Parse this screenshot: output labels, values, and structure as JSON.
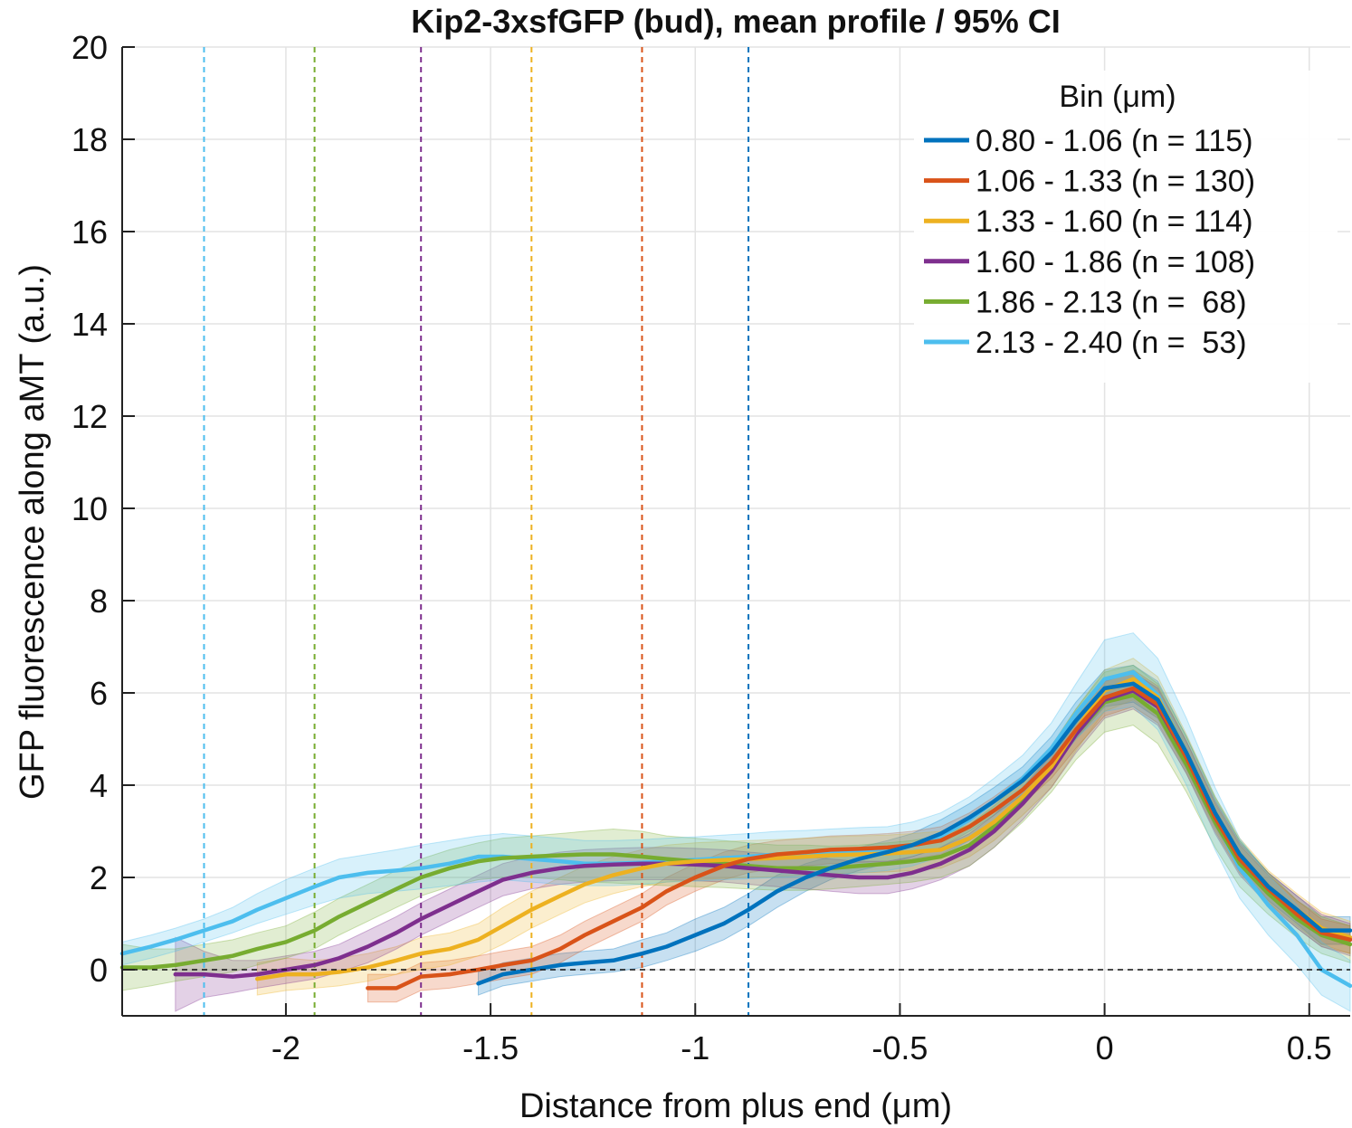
{
  "chart_data": {
    "type": "line",
    "title": "Kip2-3xsfGFP (bud), mean profile / 95% CI",
    "xlabel": "Distance from plus end (μm)",
    "ylabel": "GFP fluorescence along aMT (a.u.)",
    "xlim": [
      -2.4,
      0.6
    ],
    "ylim": [
      -1,
      20
    ],
    "xticks": [
      -2,
      -1.5,
      -1,
      -0.5,
      0,
      0.5
    ],
    "xtick_labels": [
      "-2",
      "-1.5",
      "-1",
      "-0.5",
      "0",
      "0.5"
    ],
    "yticks": [
      0,
      2,
      4,
      6,
      8,
      10,
      12,
      14,
      16,
      18,
      20
    ],
    "ytick_labels": [
      "0",
      "2",
      "4",
      "6",
      "8",
      "10",
      "12",
      "14",
      "16",
      "18",
      "20"
    ],
    "grid": true,
    "zero_line": 0,
    "legend": {
      "title": "Bin (μm)",
      "position": "top-right"
    },
    "series": [
      {
        "name": "0.80 - 1.06 (n = 115)",
        "color": "#0072BD",
        "marker_x": -0.87,
        "x": [
          -1.53,
          -1.47,
          -1.4,
          -1.33,
          -1.27,
          -1.2,
          -1.13,
          -1.07,
          -1.0,
          -0.93,
          -0.87,
          -0.8,
          -0.73,
          -0.67,
          -0.6,
          -0.53,
          -0.47,
          -0.4,
          -0.33,
          -0.27,
          -0.2,
          -0.13,
          -0.07,
          0.0,
          0.07,
          0.13,
          0.2,
          0.27,
          0.33,
          0.4,
          0.47,
          0.53,
          0.6
        ],
        "y": [
          -0.3,
          -0.1,
          0.0,
          0.1,
          0.15,
          0.2,
          0.35,
          0.5,
          0.75,
          1.0,
          1.3,
          1.7,
          2.0,
          2.2,
          2.4,
          2.55,
          2.7,
          2.95,
          3.3,
          3.65,
          4.1,
          4.7,
          5.4,
          6.1,
          6.2,
          5.85,
          4.7,
          3.4,
          2.5,
          1.8,
          1.3,
          0.85,
          0.85
        ],
        "ci_low": [
          -0.55,
          -0.35,
          -0.25,
          -0.15,
          -0.1,
          -0.05,
          0.05,
          0.2,
          0.4,
          0.65,
          0.95,
          1.35,
          1.7,
          1.95,
          2.15,
          2.3,
          2.45,
          2.65,
          3.0,
          3.35,
          3.8,
          4.35,
          5.0,
          5.7,
          5.8,
          5.45,
          4.35,
          3.1,
          2.2,
          1.5,
          1.0,
          0.55,
          0.55
        ],
        "ci_high": [
          -0.05,
          0.15,
          0.25,
          0.35,
          0.4,
          0.45,
          0.65,
          0.8,
          1.1,
          1.35,
          1.65,
          2.05,
          2.3,
          2.45,
          2.65,
          2.8,
          2.95,
          3.25,
          3.6,
          3.95,
          4.4,
          5.05,
          5.8,
          6.5,
          6.6,
          6.25,
          5.05,
          3.7,
          2.8,
          2.1,
          1.6,
          1.15,
          1.15
        ]
      },
      {
        "name": "1.06 - 1.33 (n = 130)",
        "color": "#D95319",
        "marker_x": -1.13,
        "x": [
          -1.8,
          -1.73,
          -1.67,
          -1.6,
          -1.53,
          -1.47,
          -1.4,
          -1.33,
          -1.27,
          -1.2,
          -1.13,
          -1.07,
          -1.0,
          -0.93,
          -0.87,
          -0.8,
          -0.73,
          -0.67,
          -0.6,
          -0.53,
          -0.47,
          -0.4,
          -0.33,
          -0.27,
          -0.2,
          -0.13,
          -0.07,
          0.0,
          0.07,
          0.13,
          0.2,
          0.27,
          0.33,
          0.4,
          0.47,
          0.53,
          0.6
        ],
        "y": [
          -0.4,
          -0.4,
          -0.15,
          -0.1,
          0.0,
          0.1,
          0.2,
          0.45,
          0.75,
          1.05,
          1.35,
          1.7,
          2.0,
          2.25,
          2.4,
          2.5,
          2.55,
          2.6,
          2.62,
          2.65,
          2.7,
          2.8,
          3.1,
          3.45,
          3.9,
          4.5,
          5.2,
          5.9,
          6.1,
          5.75,
          4.6,
          3.3,
          2.4,
          1.75,
          1.2,
          0.8,
          0.65
        ],
        "ci_low": [
          -0.7,
          -0.7,
          -0.45,
          -0.4,
          -0.3,
          -0.2,
          -0.1,
          0.15,
          0.45,
          0.75,
          1.05,
          1.4,
          1.7,
          1.95,
          2.1,
          2.2,
          2.25,
          2.3,
          2.32,
          2.35,
          2.4,
          2.5,
          2.8,
          3.15,
          3.6,
          4.15,
          4.8,
          5.5,
          5.7,
          5.35,
          4.25,
          3.0,
          2.1,
          1.45,
          0.9,
          0.5,
          0.35
        ],
        "ci_high": [
          -0.1,
          -0.1,
          0.15,
          0.2,
          0.3,
          0.4,
          0.5,
          0.75,
          1.05,
          1.35,
          1.65,
          2.0,
          2.3,
          2.55,
          2.7,
          2.8,
          2.85,
          2.9,
          2.92,
          2.95,
          3.0,
          3.1,
          3.4,
          3.75,
          4.2,
          4.85,
          5.6,
          6.3,
          6.5,
          6.15,
          4.95,
          3.6,
          2.7,
          2.05,
          1.5,
          1.1,
          0.95
        ]
      },
      {
        "name": "1.33 - 1.60 (n = 114)",
        "color": "#EDB120",
        "marker_x": -1.4,
        "x": [
          -2.07,
          -2.0,
          -1.93,
          -1.87,
          -1.8,
          -1.73,
          -1.67,
          -1.6,
          -1.53,
          -1.47,
          -1.4,
          -1.33,
          -1.27,
          -1.2,
          -1.13,
          -1.07,
          -1.0,
          -0.93,
          -0.87,
          -0.8,
          -0.73,
          -0.67,
          -0.6,
          -0.53,
          -0.47,
          -0.4,
          -0.33,
          -0.27,
          -0.2,
          -0.13,
          -0.07,
          0.0,
          0.07,
          0.13,
          0.2,
          0.27,
          0.33,
          0.4,
          0.47,
          0.53,
          0.6
        ],
        "y": [
          -0.2,
          -0.1,
          -0.1,
          -0.05,
          0.05,
          0.2,
          0.35,
          0.45,
          0.65,
          0.95,
          1.3,
          1.6,
          1.85,
          2.05,
          2.2,
          2.3,
          2.35,
          2.38,
          2.4,
          2.42,
          2.45,
          2.48,
          2.5,
          2.52,
          2.55,
          2.6,
          2.85,
          3.2,
          3.75,
          4.4,
          5.2,
          6.05,
          6.3,
          5.9,
          4.7,
          3.4,
          2.5,
          1.8,
          1.3,
          0.9,
          0.7
        ],
        "ci_low": [
          -0.55,
          -0.45,
          -0.4,
          -0.35,
          -0.25,
          -0.1,
          0.0,
          0.1,
          0.3,
          0.55,
          0.9,
          1.2,
          1.45,
          1.65,
          1.8,
          1.9,
          1.95,
          1.98,
          2.0,
          2.02,
          2.05,
          2.08,
          2.1,
          2.12,
          2.15,
          2.2,
          2.45,
          2.8,
          3.35,
          3.95,
          4.75,
          5.6,
          5.85,
          5.45,
          4.3,
          3.05,
          2.15,
          1.45,
          0.95,
          0.55,
          0.35
        ],
        "ci_high": [
          0.15,
          0.25,
          0.2,
          0.25,
          0.35,
          0.5,
          0.7,
          0.8,
          1.0,
          1.35,
          1.7,
          2.0,
          2.25,
          2.45,
          2.6,
          2.7,
          2.75,
          2.78,
          2.8,
          2.82,
          2.85,
          2.88,
          2.9,
          2.92,
          2.95,
          3.0,
          3.25,
          3.6,
          4.15,
          4.85,
          5.65,
          6.5,
          6.75,
          6.35,
          5.1,
          3.75,
          2.85,
          2.15,
          1.65,
          1.25,
          1.05
        ]
      },
      {
        "name": "1.60 - 1.86 (n = 108)",
        "color": "#7E2F8E",
        "marker_x": -1.67,
        "x": [
          -2.27,
          -2.2,
          -2.13,
          -2.07,
          -2.0,
          -1.93,
          -1.87,
          -1.8,
          -1.73,
          -1.67,
          -1.6,
          -1.53,
          -1.47,
          -1.4,
          -1.33,
          -1.27,
          -1.2,
          -1.13,
          -1.07,
          -1.0,
          -0.93,
          -0.87,
          -0.8,
          -0.73,
          -0.67,
          -0.6,
          -0.53,
          -0.47,
          -0.4,
          -0.33,
          -0.27,
          -0.2,
          -0.13,
          -0.07,
          0.0,
          0.07,
          0.13,
          0.2,
          0.27,
          0.33,
          0.4,
          0.47,
          0.53,
          0.6
        ],
        "y": [
          -0.1,
          -0.1,
          -0.15,
          -0.1,
          0.0,
          0.1,
          0.25,
          0.5,
          0.8,
          1.1,
          1.4,
          1.7,
          1.95,
          2.1,
          2.2,
          2.25,
          2.28,
          2.3,
          2.3,
          2.28,
          2.25,
          2.2,
          2.15,
          2.1,
          2.05,
          2.0,
          2.0,
          2.1,
          2.3,
          2.6,
          3.0,
          3.6,
          4.3,
          5.1,
          5.85,
          6.05,
          5.7,
          4.6,
          3.3,
          2.4,
          1.75,
          1.25,
          0.85,
          0.65
        ],
        "ci_low": [
          -0.9,
          -0.6,
          -0.5,
          -0.4,
          -0.3,
          -0.2,
          -0.05,
          0.15,
          0.45,
          0.75,
          1.05,
          1.35,
          1.6,
          1.75,
          1.85,
          1.9,
          1.93,
          1.95,
          1.95,
          1.93,
          1.9,
          1.85,
          1.8,
          1.75,
          1.7,
          1.65,
          1.65,
          1.75,
          1.95,
          2.25,
          2.65,
          3.25,
          3.95,
          4.7,
          5.45,
          5.65,
          5.3,
          4.25,
          2.95,
          2.05,
          1.4,
          0.9,
          0.5,
          0.3
        ],
        "ci_high": [
          0.7,
          0.4,
          0.2,
          0.2,
          0.3,
          0.4,
          0.55,
          0.85,
          1.15,
          1.45,
          1.75,
          2.05,
          2.3,
          2.45,
          2.55,
          2.6,
          2.63,
          2.65,
          2.65,
          2.63,
          2.6,
          2.55,
          2.5,
          2.45,
          2.4,
          2.35,
          2.35,
          2.45,
          2.65,
          2.95,
          3.35,
          3.95,
          4.65,
          5.5,
          6.25,
          6.45,
          6.1,
          4.95,
          3.65,
          2.75,
          2.1,
          1.6,
          1.2,
          1.0
        ]
      },
      {
        "name": "1.86 - 2.13 (n =  68)",
        "color": "#77AC30",
        "marker_x": -1.93,
        "x": [
          -2.4,
          -2.33,
          -2.27,
          -2.2,
          -2.13,
          -2.07,
          -2.0,
          -1.93,
          -1.87,
          -1.8,
          -1.73,
          -1.67,
          -1.6,
          -1.53,
          -1.47,
          -1.4,
          -1.33,
          -1.27,
          -1.2,
          -1.13,
          -1.07,
          -1.0,
          -0.93,
          -0.87,
          -0.8,
          -0.73,
          -0.67,
          -0.6,
          -0.53,
          -0.47,
          -0.4,
          -0.33,
          -0.27,
          -0.2,
          -0.13,
          -0.07,
          0.0,
          0.07,
          0.13,
          0.2,
          0.27,
          0.33,
          0.4,
          0.47,
          0.53,
          0.6
        ],
        "y": [
          0.05,
          0.05,
          0.1,
          0.2,
          0.3,
          0.45,
          0.6,
          0.85,
          1.15,
          1.45,
          1.75,
          2.0,
          2.2,
          2.35,
          2.42,
          2.45,
          2.48,
          2.5,
          2.5,
          2.45,
          2.4,
          2.35,
          2.3,
          2.25,
          2.2,
          2.2,
          2.2,
          2.25,
          2.3,
          2.35,
          2.45,
          2.7,
          3.1,
          3.65,
          4.35,
          5.1,
          5.8,
          5.95,
          5.55,
          4.45,
          3.2,
          2.3,
          1.65,
          1.1,
          0.75,
          0.55
        ],
        "ci_low": [
          -0.45,
          -0.35,
          -0.25,
          -0.15,
          -0.05,
          0.1,
          0.25,
          0.45,
          0.75,
          1.05,
          1.35,
          1.6,
          1.8,
          1.95,
          2.0,
          2.0,
          1.95,
          1.9,
          1.88,
          1.85,
          1.82,
          1.8,
          1.78,
          1.75,
          1.72,
          1.72,
          1.75,
          1.8,
          1.85,
          1.9,
          2.0,
          2.25,
          2.65,
          3.2,
          3.85,
          4.55,
          5.15,
          5.3,
          4.9,
          3.85,
          2.65,
          1.8,
          1.2,
          0.7,
          0.35,
          0.15
        ],
        "ci_high": [
          0.55,
          0.45,
          0.45,
          0.55,
          0.65,
          0.8,
          0.95,
          1.25,
          1.55,
          1.85,
          2.15,
          2.4,
          2.6,
          2.75,
          2.85,
          2.9,
          2.95,
          3.0,
          3.05,
          3.0,
          2.9,
          2.85,
          2.8,
          2.75,
          2.7,
          2.7,
          2.68,
          2.7,
          2.75,
          2.8,
          2.9,
          3.15,
          3.55,
          4.1,
          4.85,
          5.65,
          6.45,
          6.6,
          6.2,
          5.05,
          3.75,
          2.8,
          2.1,
          1.5,
          1.15,
          0.95
        ]
      },
      {
        "name": "2.13 - 2.40 (n =  53)",
        "color": "#4DBEEE",
        "marker_x": -2.2,
        "x": [
          -2.4,
          -2.33,
          -2.27,
          -2.2,
          -2.13,
          -2.07,
          -2.0,
          -1.93,
          -1.87,
          -1.8,
          -1.73,
          -1.67,
          -1.6,
          -1.53,
          -1.47,
          -1.4,
          -1.33,
          -1.27,
          -1.2,
          -1.13,
          -1.07,
          -1.0,
          -0.93,
          -0.87,
          -0.8,
          -0.73,
          -0.67,
          -0.6,
          -0.53,
          -0.47,
          -0.4,
          -0.33,
          -0.27,
          -0.2,
          -0.13,
          -0.07,
          0.0,
          0.07,
          0.13,
          0.2,
          0.27,
          0.33,
          0.4,
          0.47,
          0.53,
          0.6
        ],
        "y": [
          0.35,
          0.5,
          0.65,
          0.85,
          1.05,
          1.3,
          1.55,
          1.8,
          2.0,
          2.1,
          2.15,
          2.2,
          2.3,
          2.45,
          2.45,
          2.4,
          2.35,
          2.3,
          2.3,
          2.32,
          2.35,
          2.38,
          2.42,
          2.45,
          2.5,
          2.52,
          2.55,
          2.58,
          2.6,
          2.7,
          2.9,
          3.25,
          3.65,
          4.15,
          4.8,
          5.55,
          6.3,
          6.45,
          5.95,
          4.7,
          3.25,
          2.2,
          1.4,
          0.75,
          0.0,
          -0.35
        ],
        "ci_low": [
          0.1,
          0.25,
          0.4,
          0.6,
          0.8,
          1.0,
          1.2,
          1.4,
          1.55,
          1.65,
          1.7,
          1.75,
          1.82,
          1.9,
          1.95,
          1.9,
          1.85,
          1.82,
          1.82,
          1.85,
          1.9,
          1.92,
          1.95,
          1.97,
          2.0,
          2.02,
          2.05,
          2.1,
          2.15,
          2.25,
          2.45,
          2.8,
          3.2,
          3.7,
          4.3,
          5.0,
          5.6,
          5.7,
          5.2,
          4.0,
          2.6,
          1.55,
          0.75,
          0.1,
          -0.55,
          -0.9
        ],
        "ci_high": [
          0.6,
          0.75,
          0.9,
          1.1,
          1.35,
          1.65,
          1.95,
          2.2,
          2.4,
          2.5,
          2.6,
          2.7,
          2.8,
          2.9,
          2.95,
          2.9,
          2.85,
          2.8,
          2.8,
          2.82,
          2.85,
          2.88,
          2.92,
          2.95,
          3.0,
          3.02,
          3.05,
          3.08,
          3.1,
          3.2,
          3.4,
          3.75,
          4.15,
          4.65,
          5.35,
          6.2,
          7.15,
          7.3,
          6.75,
          5.45,
          3.95,
          2.85,
          2.05,
          1.4,
          0.6,
          0.2
        ]
      }
    ]
  }
}
